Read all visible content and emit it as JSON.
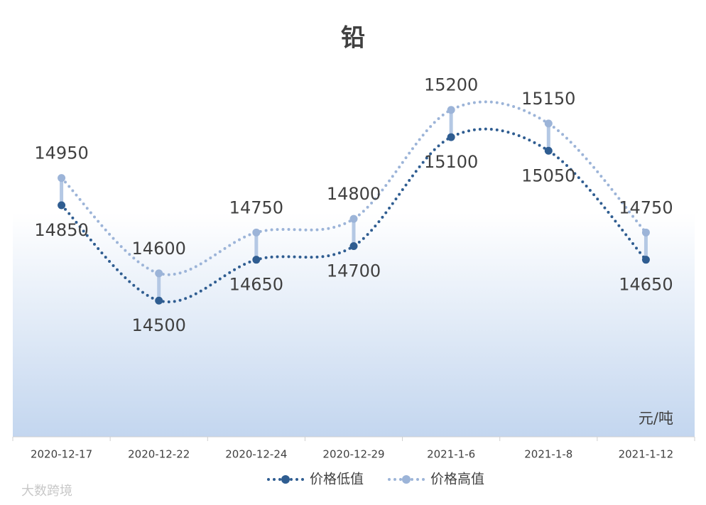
{
  "chart_data": {
    "type": "line",
    "title": "铅",
    "unit_label": "元/吨",
    "watermark": "大数跨境",
    "categories": [
      "2020-12-17",
      "2020-12-22",
      "2020-12-24",
      "2020-12-29",
      "2021-1-6",
      "2021-1-8",
      "2021-1-12"
    ],
    "series": [
      {
        "name": "价格低值",
        "color": "#2f5d91",
        "values": [
          14850,
          14500,
          14650,
          14700,
          15100,
          15050,
          14650
        ]
      },
      {
        "name": "价格高值",
        "color": "#9cb4d8",
        "values": [
          14950,
          14600,
          14750,
          14800,
          15200,
          15150,
          14750
        ]
      }
    ],
    "ylim": [
      14000,
      15400
    ],
    "high_low_lines": true,
    "legend": "bottom"
  }
}
